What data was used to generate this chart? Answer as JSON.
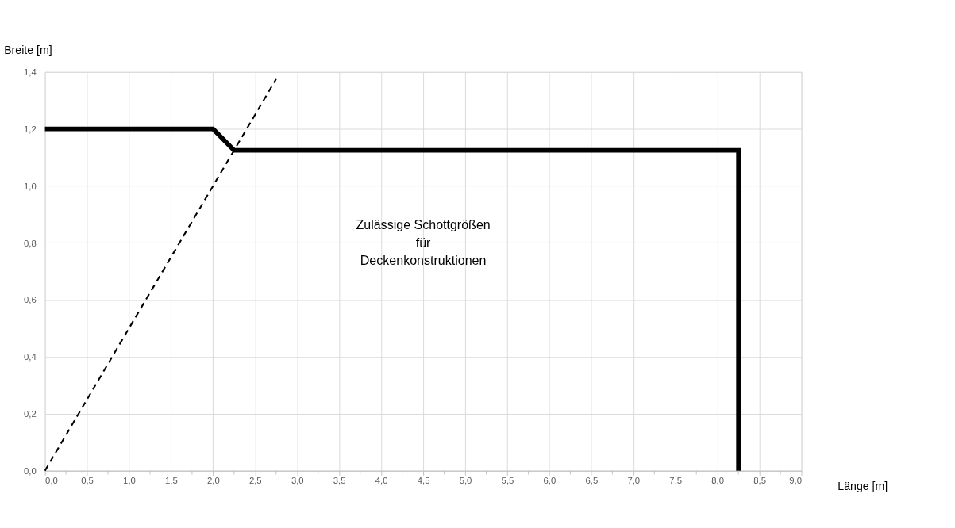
{
  "chart_data": {
    "type": "line",
    "xlabel": "Länge [m]",
    "ylabel": "Breite [m]",
    "series": [
      {
        "color": "#000000",
        "x": [
          0,
          2.0,
          2.25,
          8.25,
          8.25
        ],
        "values": [
          1.2,
          1.2,
          1.125,
          1.125,
          0
        ],
        "line_style": "solid"
      },
      {
        "color": "#000000",
        "x": [
          0,
          2.75
        ],
        "values": [
          0,
          1.375
        ],
        "line_style": "dashed"
      }
    ],
    "xlim": [
      0,
      9
    ],
    "ylim": [
      0,
      1.4
    ],
    "xticks": [
      {
        "value": 0,
        "label": "0,0"
      },
      {
        "value": 0.25,
        "label": null
      },
      {
        "value": 0.5,
        "label": "0,5"
      },
      {
        "value": 0.75,
        "label": null
      },
      {
        "value": 1,
        "label": "1,0"
      },
      {
        "value": 1.25,
        "label": null
      },
      {
        "value": 1.5,
        "label": "1,5"
      },
      {
        "value": 1.75,
        "label": null
      },
      {
        "value": 2,
        "label": "2,0"
      },
      {
        "value": 2.25,
        "label": null
      },
      {
        "value": 2.5,
        "label": "2,5"
      },
      {
        "value": 2.75,
        "label": null
      },
      {
        "value": 3,
        "label": "3,0"
      },
      {
        "value": 3.25,
        "label": null
      },
      {
        "value": 3.5,
        "label": "3,5"
      },
      {
        "value": 3.75,
        "label": null
      },
      {
        "value": 4,
        "label": "4,0"
      },
      {
        "value": 4.25,
        "label": null
      },
      {
        "value": 4.5,
        "label": "4,5"
      },
      {
        "value": 4.75,
        "label": null
      },
      {
        "value": 5,
        "label": "5,0"
      },
      {
        "value": 5.25,
        "label": null
      },
      {
        "value": 5.5,
        "label": "5,5"
      },
      {
        "value": 5.75,
        "label": null
      },
      {
        "value": 6,
        "label": "6,0"
      },
      {
        "value": 6.25,
        "label": null
      },
      {
        "value": 6.5,
        "label": "6,5"
      },
      {
        "value": 6.75,
        "label": null
      },
      {
        "value": 7,
        "label": "7,0"
      },
      {
        "value": 7.25,
        "label": null
      },
      {
        "value": 7.5,
        "label": "7,5"
      },
      {
        "value": 7.75,
        "label": null
      },
      {
        "value": 8,
        "label": "8,0"
      },
      {
        "value": 8.25,
        "label": null
      },
      {
        "value": 8.5,
        "label": "8,5"
      },
      {
        "value": 8.75,
        "label": null
      },
      {
        "value": 9,
        "label": "9,0"
      }
    ],
    "yticks": [
      {
        "value": 0,
        "label": "0,0"
      },
      {
        "value": 0.2,
        "label": "0,2"
      },
      {
        "value": 0.4,
        "label": "0,4"
      },
      {
        "value": 0.6,
        "label": "0,6"
      },
      {
        "value": 0.8,
        "label": "0,8"
      },
      {
        "value": 1.0,
        "label": "1,0"
      },
      {
        "value": 1.2,
        "label": "1,2"
      },
      {
        "value": 1.4,
        "label": "1,4"
      }
    ],
    "grid": true,
    "marker": "none",
    "annotations": [
      "Zulässige Schottgrößen\nfür\nDeckenkonstruktionen"
    ]
  }
}
